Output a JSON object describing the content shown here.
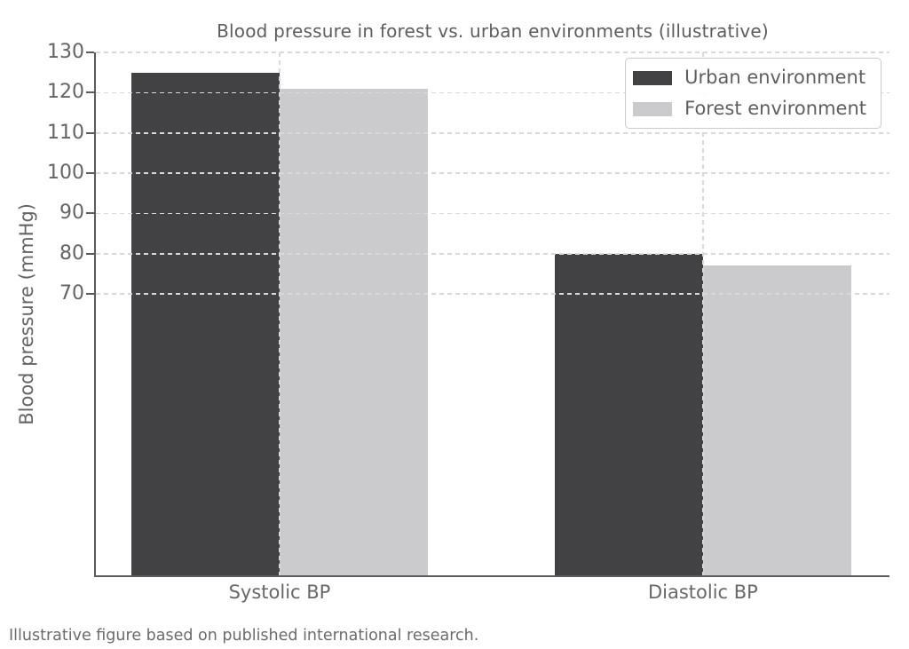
{
  "figure": {
    "caption": "Illustrative figure based on published international research."
  },
  "chart_data": {
    "type": "bar",
    "title": "Blood pressure in forest vs. urban environments (illustrative)",
    "categories": [
      "Systolic BP",
      "Diastolic BP"
    ],
    "series": [
      {
        "name": "Urban environment",
        "values": [
          125,
          80
        ],
        "color": "#424245"
      },
      {
        "name": "Forest environment",
        "values": [
          121,
          77
        ],
        "color": "#cbcbce"
      }
    ],
    "xlabel": "",
    "ylabel": "Blood pressure (mmHg)",
    "ylim": [
      0,
      130
    ],
    "yticks": [
      70,
      80,
      90,
      100,
      110,
      120,
      130
    ],
    "grid": {
      "show": true,
      "style": "dashed",
      "axes": "both",
      "drawn_over_bars": true
    },
    "legend": {
      "position": "upper-right",
      "entries": [
        "Urban environment",
        "Forest environment"
      ]
    }
  }
}
